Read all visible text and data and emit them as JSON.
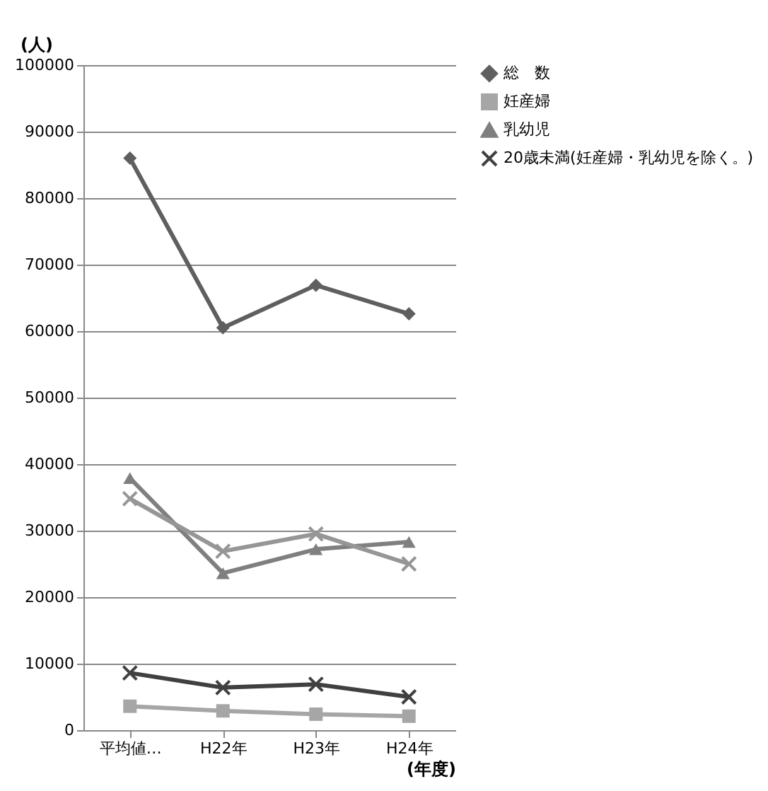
{
  "chart_data": {
    "type": "line",
    "xlabel": "(年度)",
    "ylabel": "(人)",
    "categories": [
      "平均値…",
      "H22年",
      "H23年",
      "H24年"
    ],
    "series": [
      {
        "name": "総　数",
        "color": "#5f5f5f",
        "marker": "diamond",
        "values": [
          86000,
          60500,
          66900,
          62600
        ]
      },
      {
        "name": "妊産婦",
        "color": "#a6a6a6",
        "marker": "square",
        "values": [
          3600,
          2900,
          2400,
          2100
        ]
      },
      {
        "name": "乳幼児",
        "color": "#7f7f7f",
        "marker": "triangle",
        "values": [
          37900,
          23600,
          27200,
          28300
        ]
      },
      {
        "name": "20歳未満(妊産婦・乳幼児を除く。)",
        "color": "#404040",
        "marker": "cross",
        "values": [
          8600,
          6400,
          6900,
          5000
        ]
      },
      {
        "color": "#969696",
        "marker": "cross",
        "values": [
          34800,
          26900,
          29500,
          25000
        ]
      }
    ],
    "ylim": [
      0,
      100000
    ],
    "yticks": [
      0,
      10000,
      20000,
      30000,
      40000,
      50000,
      60000,
      70000,
      80000,
      90000,
      100000
    ],
    "grid": "y",
    "legend": "right",
    "line_style": "solid"
  }
}
